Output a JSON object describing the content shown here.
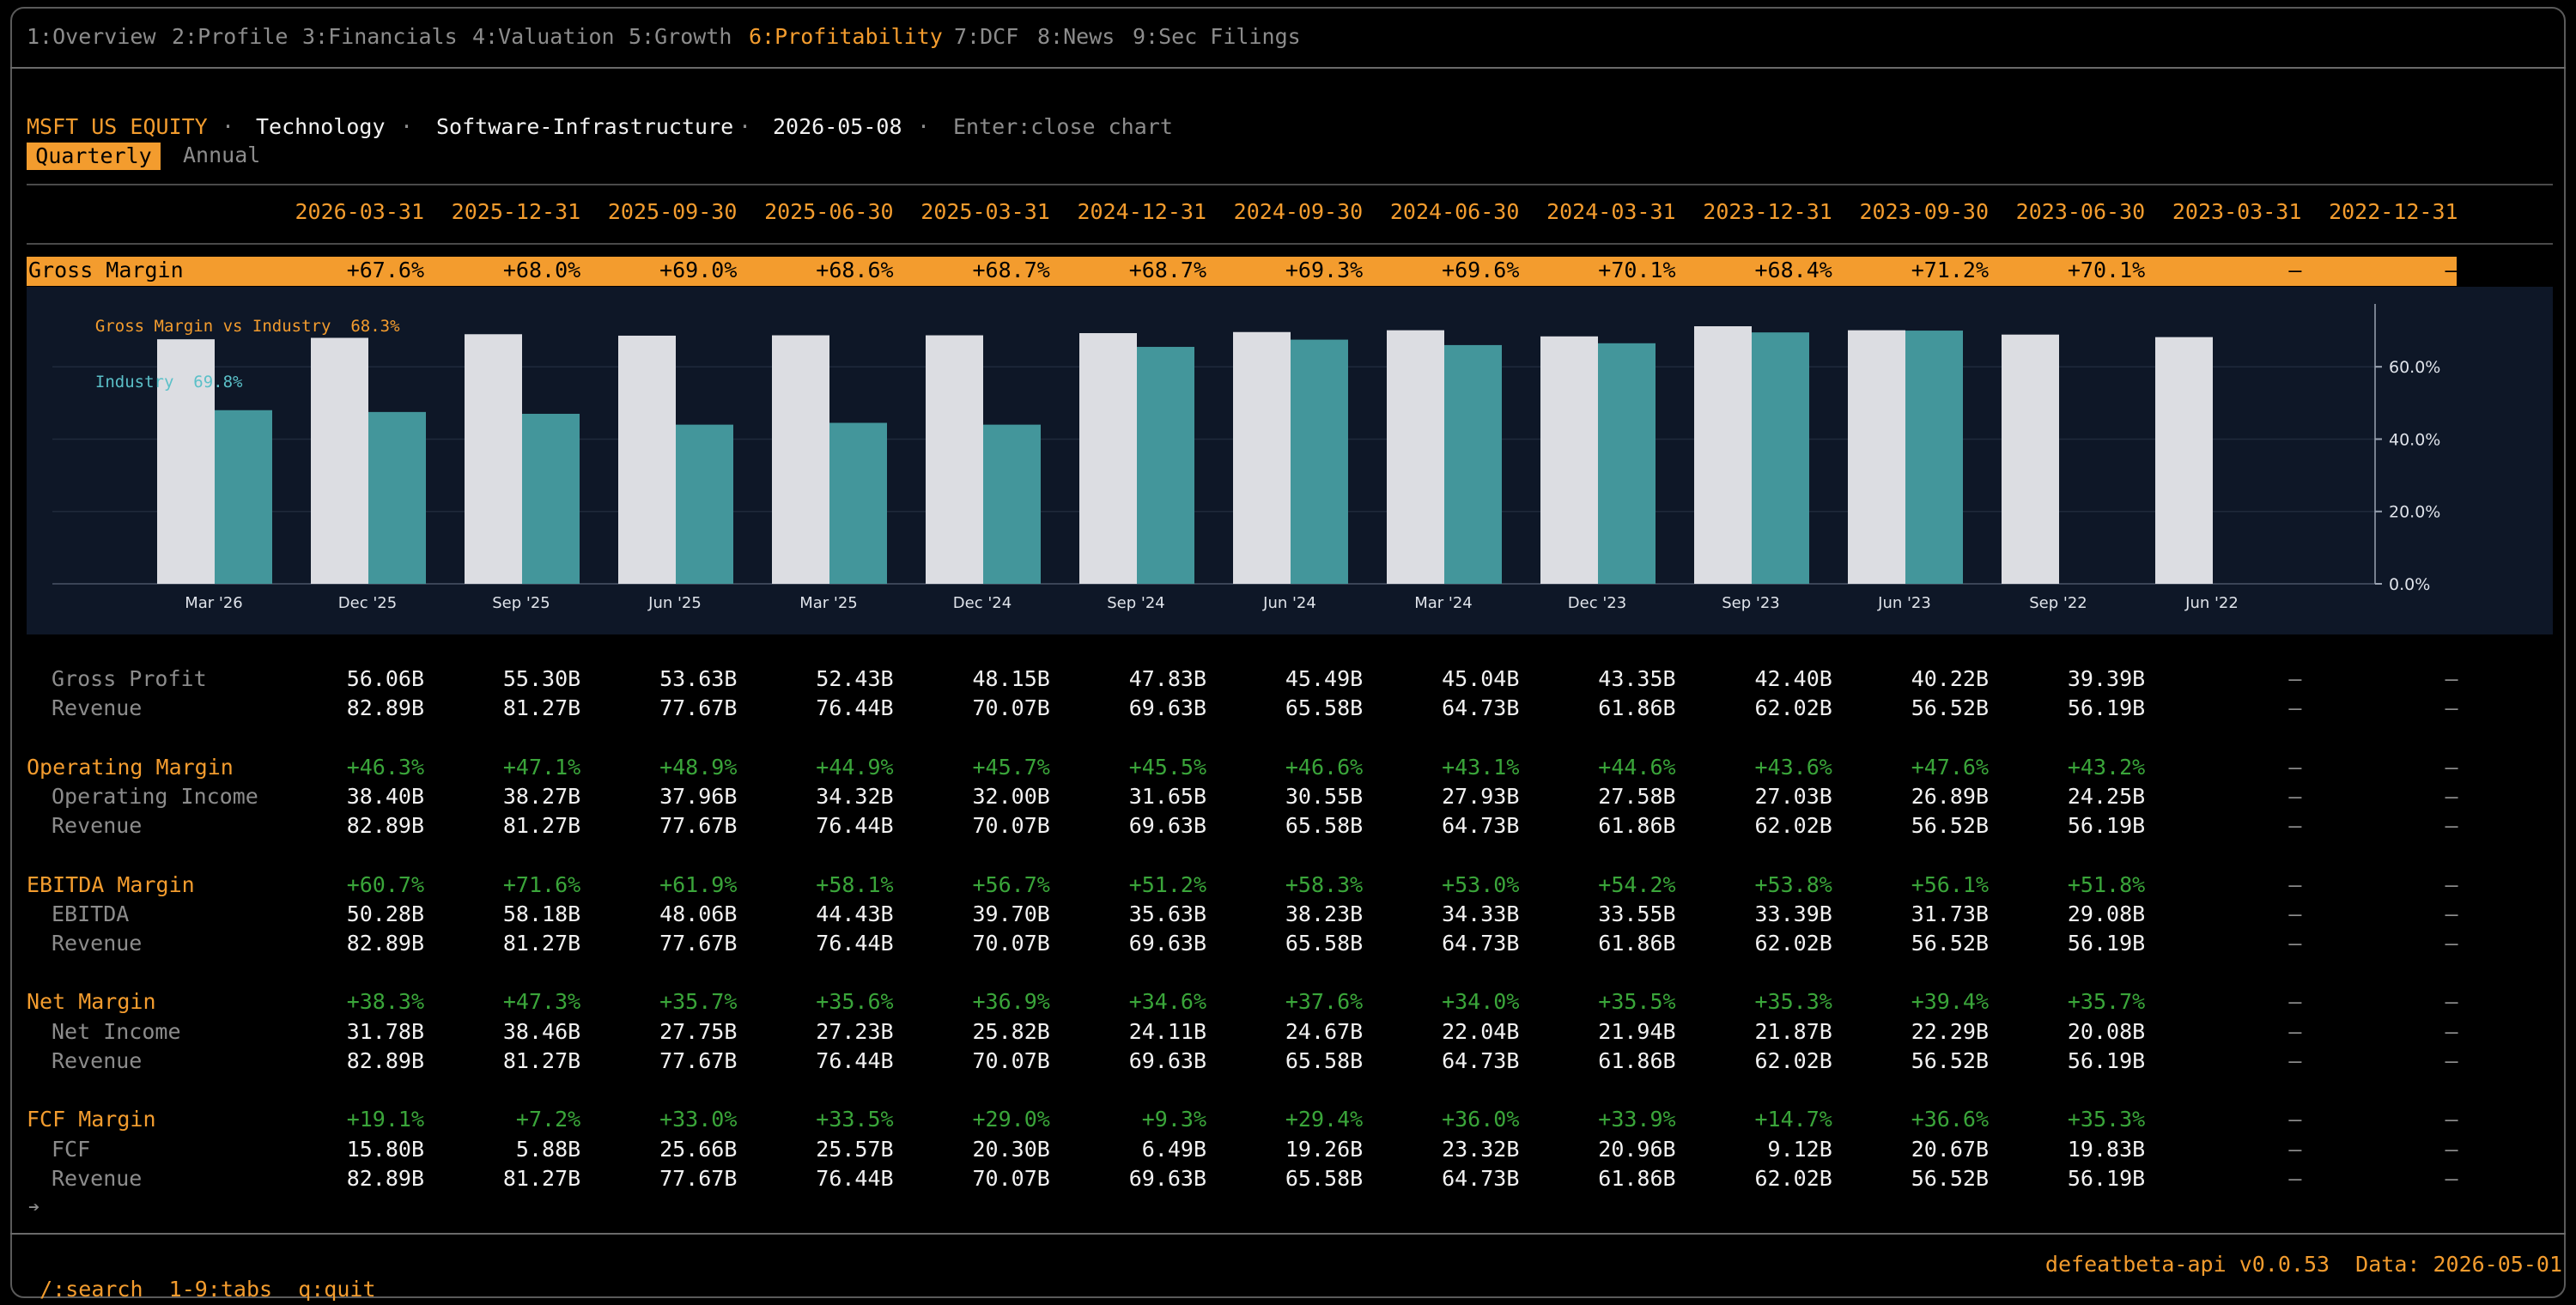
{
  "tabs": [
    {
      "label": "1:Overview",
      "active": false
    },
    {
      "label": "2:Profile",
      "active": false
    },
    {
      "label": "3:Financials",
      "active": false
    },
    {
      "label": "4:Valuation",
      "active": false
    },
    {
      "label": "5:Growth",
      "active": false
    },
    {
      "label": "6:Profitability",
      "active": true
    },
    {
      "label": "7:DCF",
      "active": false
    },
    {
      "label": "8:News",
      "active": false
    },
    {
      "label": "9:Sec Filings",
      "active": false
    }
  ],
  "header": {
    "ticker": "MSFT US EQUITY",
    "sep": "·",
    "sector": "Technology",
    "industry": "Software-Infrastructure",
    "date": "2026-05-08",
    "hint": "Enter:close chart"
  },
  "period_toggle": {
    "quarterly": "Quarterly",
    "annual": "Annual",
    "selected": "Quarterly"
  },
  "columns": [
    "2026-03-31",
    "2025-12-31",
    "2025-09-30",
    "2025-06-30",
    "2025-03-31",
    "2024-12-31",
    "2024-09-30",
    "2024-06-30",
    "2024-03-31",
    "2023-12-31",
    "2023-09-30",
    "2023-06-30",
    "2023-03-31",
    "2022-12-31"
  ],
  "gross_margin_row": {
    "label": "Gross Margin",
    "values": [
      "+67.6%",
      "+68.0%",
      "+69.0%",
      "+68.6%",
      "+68.7%",
      "+68.7%",
      "+69.3%",
      "+69.6%",
      "+70.1%",
      "+68.4%",
      "+71.2%",
      "+70.1%",
      "–",
      "–"
    ]
  },
  "chart_data": {
    "type": "bar",
    "legend": [
      {
        "label": "Gross Margin vs Industry",
        "value": "68.3%",
        "color": "#f39c2e"
      },
      {
        "label": "Industry",
        "value": "69.8%",
        "color": "#5bc0c8"
      }
    ],
    "categories": [
      "Mar '26",
      "Dec '25",
      "Sep '25",
      "Jun '25",
      "Mar '25",
      "Dec '24",
      "Sep '24",
      "Jun '24",
      "Mar '24",
      "Dec '23",
      "Sep '23",
      "Jun '23",
      "Sep '22",
      "Jun '22"
    ],
    "series": [
      {
        "name": "Gross Margin",
        "color": "#dcdde2",
        "values": [
          67.6,
          68.0,
          69.0,
          68.6,
          68.7,
          68.7,
          69.3,
          69.6,
          70.1,
          68.4,
          71.2,
          70.1,
          68.9,
          68.2
        ]
      },
      {
        "name": "Industry",
        "color": "#43969b",
        "values": [
          48.0,
          47.5,
          47.0,
          44.0,
          44.5,
          44.0,
          65.5,
          67.5,
          66.0,
          66.5,
          69.5,
          70.0,
          null,
          null
        ]
      }
    ],
    "ylim": [
      0,
      75
    ],
    "yticks": [
      "0.0%",
      "20.0%",
      "40.0%",
      "60.0%"
    ],
    "ytick_values": [
      0,
      20,
      40,
      60
    ],
    "grid": true,
    "legend_placement": "top-left"
  },
  "sections": [
    {
      "title": null,
      "title_values": null,
      "rows": [
        {
          "label": "Gross Profit",
          "values": [
            "56.06B",
            "55.30B",
            "53.63B",
            "52.43B",
            "48.15B",
            "47.83B",
            "45.49B",
            "45.04B",
            "43.35B",
            "42.40B",
            "40.22B",
            "39.39B",
            "–",
            "–"
          ]
        },
        {
          "label": "Revenue",
          "values": [
            "82.89B",
            "81.27B",
            "77.67B",
            "76.44B",
            "70.07B",
            "69.63B",
            "65.58B",
            "64.73B",
            "61.86B",
            "62.02B",
            "56.52B",
            "56.19B",
            "–",
            "–"
          ]
        }
      ]
    },
    {
      "title": "Operating Margin",
      "title_values": [
        "+46.3%",
        "+47.1%",
        "+48.9%",
        "+44.9%",
        "+45.7%",
        "+45.5%",
        "+46.6%",
        "+43.1%",
        "+44.6%",
        "+43.6%",
        "+47.6%",
        "+43.2%",
        "–",
        "–"
      ],
      "rows": [
        {
          "label": "Operating Income",
          "values": [
            "38.40B",
            "38.27B",
            "37.96B",
            "34.32B",
            "32.00B",
            "31.65B",
            "30.55B",
            "27.93B",
            "27.58B",
            "27.03B",
            "26.89B",
            "24.25B",
            "–",
            "–"
          ]
        },
        {
          "label": "Revenue",
          "values": [
            "82.89B",
            "81.27B",
            "77.67B",
            "76.44B",
            "70.07B",
            "69.63B",
            "65.58B",
            "64.73B",
            "61.86B",
            "62.02B",
            "56.52B",
            "56.19B",
            "–",
            "–"
          ]
        }
      ]
    },
    {
      "title": "EBITDA Margin",
      "title_values": [
        "+60.7%",
        "+71.6%",
        "+61.9%",
        "+58.1%",
        "+56.7%",
        "+51.2%",
        "+58.3%",
        "+53.0%",
        "+54.2%",
        "+53.8%",
        "+56.1%",
        "+51.8%",
        "–",
        "–"
      ],
      "rows": [
        {
          "label": "EBITDA",
          "values": [
            "50.28B",
            "58.18B",
            "48.06B",
            "44.43B",
            "39.70B",
            "35.63B",
            "38.23B",
            "34.33B",
            "33.55B",
            "33.39B",
            "31.73B",
            "29.08B",
            "–",
            "–"
          ]
        },
        {
          "label": "Revenue",
          "values": [
            "82.89B",
            "81.27B",
            "77.67B",
            "76.44B",
            "70.07B",
            "69.63B",
            "65.58B",
            "64.73B",
            "61.86B",
            "62.02B",
            "56.52B",
            "56.19B",
            "–",
            "–"
          ]
        }
      ]
    },
    {
      "title": "Net Margin",
      "title_values": [
        "+38.3%",
        "+47.3%",
        "+35.7%",
        "+35.6%",
        "+36.9%",
        "+34.6%",
        "+37.6%",
        "+34.0%",
        "+35.5%",
        "+35.3%",
        "+39.4%",
        "+35.7%",
        "–",
        "–"
      ],
      "rows": [
        {
          "label": "Net Income",
          "values": [
            "31.78B",
            "38.46B",
            "27.75B",
            "27.23B",
            "25.82B",
            "24.11B",
            "24.67B",
            "22.04B",
            "21.94B",
            "21.87B",
            "22.29B",
            "20.08B",
            "–",
            "–"
          ]
        },
        {
          "label": "Revenue",
          "values": [
            "82.89B",
            "81.27B",
            "77.67B",
            "76.44B",
            "70.07B",
            "69.63B",
            "65.58B",
            "64.73B",
            "61.86B",
            "62.02B",
            "56.52B",
            "56.19B",
            "–",
            "–"
          ]
        }
      ]
    },
    {
      "title": "FCF Margin",
      "title_values": [
        "+19.1%",
        "+7.2%",
        "+33.0%",
        "+33.5%",
        "+29.0%",
        "+9.3%",
        "+29.4%",
        "+36.0%",
        "+33.9%",
        "+14.7%",
        "+36.6%",
        "+35.3%",
        "–",
        "–"
      ],
      "rows": [
        {
          "label": "FCF",
          "values": [
            "15.80B",
            "5.88B",
            "25.66B",
            "25.57B",
            "20.30B",
            "6.49B",
            "19.26B",
            "23.32B",
            "20.96B",
            "9.12B",
            "20.67B",
            "19.83B",
            "–",
            "–"
          ]
        },
        {
          "label": "Revenue",
          "values": [
            "82.89B",
            "81.27B",
            "77.67B",
            "76.44B",
            "70.07B",
            "69.63B",
            "65.58B",
            "64.73B",
            "61.86B",
            "62.02B",
            "56.52B",
            "56.19B",
            "–",
            "–"
          ]
        }
      ]
    }
  ],
  "scroll_indicator": "➔",
  "footer": {
    "keys": [
      {
        "key": "/:",
        "label": "search"
      },
      {
        "key": "1-9:",
        "label": "tabs"
      },
      {
        "key": "q:",
        "label": "quit"
      }
    ],
    "version": "defeatbeta-api v0.0.53",
    "data_date": "Data: 2026-05-01"
  }
}
